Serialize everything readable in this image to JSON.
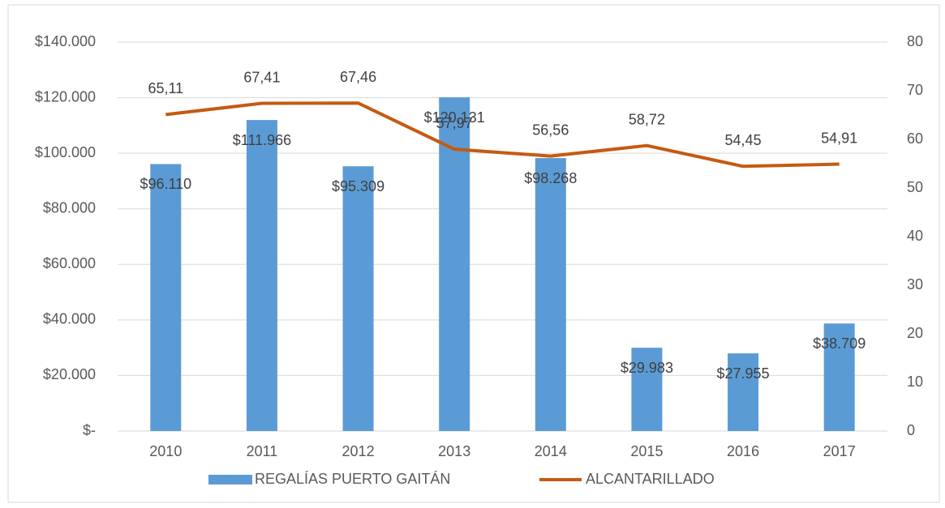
{
  "chart_data": {
    "type": "bar",
    "categories": [
      "2010",
      "2011",
      "2012",
      "2013",
      "2014",
      "2015",
      "2016",
      "2017"
    ],
    "series": [
      {
        "name": "REGALÍAS PUERTO GAITÁN",
        "type": "bar",
        "color": "#5b9bd5",
        "values": [
          96110,
          111966,
          95309,
          120131,
          98268,
          29983,
          27955,
          38709
        ],
        "value_labels": [
          "$96.110",
          "$111.966",
          "$95.309",
          "$120.131",
          "$98.268",
          "$29.983",
          "$27.955",
          "$38.709"
        ]
      },
      {
        "name": "ALCANTARILLADO",
        "type": "line",
        "axis": "y2",
        "color": "#c55a11",
        "values": [
          65.11,
          67.41,
          67.46,
          57.97,
          56.56,
          58.72,
          54.45,
          54.91
        ],
        "value_labels": [
          "65,11",
          "67,41",
          "67,46",
          "57,97",
          "56,56",
          "58,72",
          "54,45",
          "54,91"
        ]
      }
    ],
    "ylim": [
      0,
      140000
    ],
    "yticks": [
      {
        "value": 0,
        "label": "$-"
      },
      {
        "value": 20000,
        "label": "$20.000"
      },
      {
        "value": 40000,
        "label": "$40.000"
      },
      {
        "value": 60000,
        "label": "$60.000"
      },
      {
        "value": 80000,
        "label": "$80.000"
      },
      {
        "value": 100000,
        "label": "$100.000"
      },
      {
        "value": 120000,
        "label": "$120.000"
      },
      {
        "value": 140000,
        "label": "$140.000"
      }
    ],
    "y2lim": [
      0,
      80
    ],
    "y2ticks": [
      0,
      10,
      20,
      30,
      40,
      50,
      60,
      70,
      80
    ],
    "grid": true,
    "legend": "bottom"
  }
}
